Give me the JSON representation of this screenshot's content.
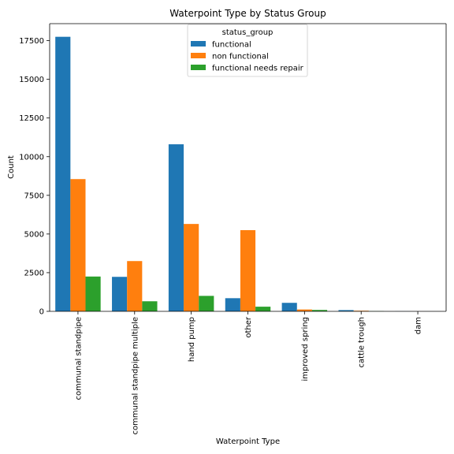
{
  "chart_data": {
    "type": "bar",
    "title": "Waterpoint Type by Status Group",
    "xlabel": "Waterpoint Type",
    "ylabel": "Count",
    "ylim": [
      0,
      18600
    ],
    "yticks": [
      0,
      2500,
      5000,
      7500,
      10000,
      12500,
      15000,
      17500
    ],
    "categories": [
      "communal standpipe",
      "communal standpipe multiple",
      "hand pump",
      "other",
      "improved spring",
      "cattle trough",
      "dam"
    ],
    "series": [
      {
        "name": "functional",
        "color": "#1f77b4",
        "values": [
          17750,
          2230,
          10800,
          850,
          550,
          80,
          5
        ]
      },
      {
        "name": "non functional",
        "color": "#ff7f0e",
        "values": [
          8550,
          3250,
          5650,
          5250,
          120,
          40,
          2
        ]
      },
      {
        "name": "functional needs repair",
        "color": "#2ca02c",
        "values": [
          2250,
          650,
          1000,
          300,
          90,
          10,
          1
        ]
      }
    ],
    "legend": {
      "title": "status_group",
      "placement": "upper-center"
    },
    "grid": false
  }
}
